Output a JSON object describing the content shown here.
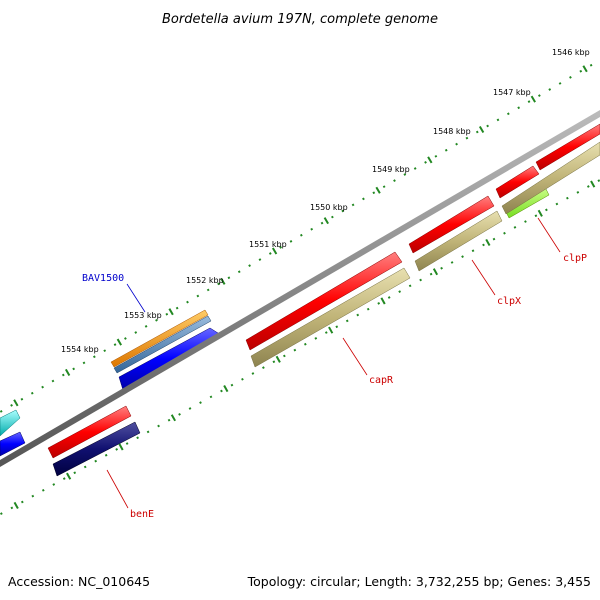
{
  "title": "Bordetella avium 197N, complete genome",
  "footer": {
    "accession": "Accession: NC_010645",
    "summary": "Topology: circular; Length: 3,732,255 bp; Genes: 3,455"
  },
  "ticks": [
    "1546 kbp",
    "1547 kbp",
    "1548 kbp",
    "1549 kbp",
    "1550 kbp",
    "1551 kbp",
    "1552 kbp",
    "1553 kbp",
    "1554 kbp"
  ],
  "gene_labels": [
    {
      "name": "BAV1500",
      "color": "#0000cc"
    },
    {
      "name": "clpP",
      "color": "#cc0000"
    },
    {
      "name": "clpX",
      "color": "#cc0000"
    },
    {
      "name": "capR",
      "color": "#cc0000"
    },
    {
      "name": "benE",
      "color": "#cc0000"
    }
  ],
  "colors": {
    "backbone": "#888888",
    "forward_gene": "#ff0000",
    "reverse_cds": "#c8c080",
    "orange_gene": "#ff9900",
    "steel_gene": "#5588bb",
    "blue_gene": "#0000ff",
    "navy_gene": "#000066",
    "cyan_gene": "#00cccc",
    "lime_gene": "#99ff33",
    "tick": "#228822"
  }
}
